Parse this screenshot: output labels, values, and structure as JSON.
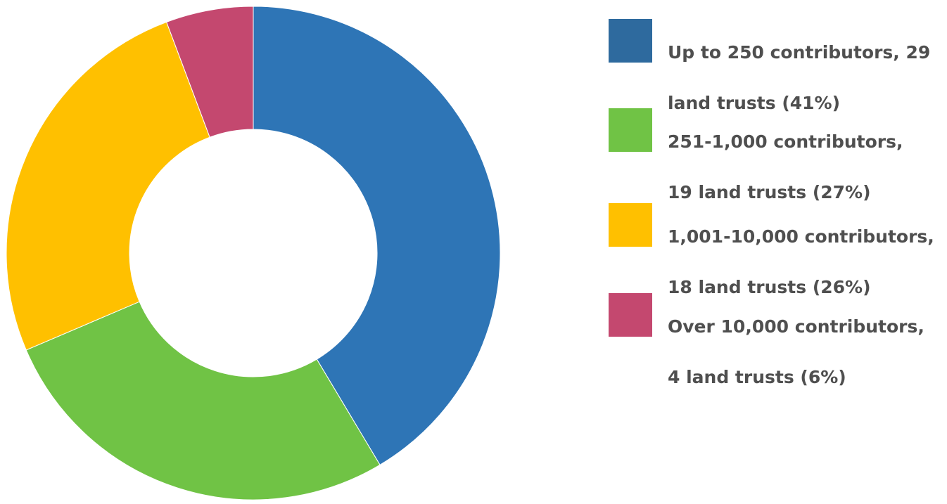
{
  "chart_data": {
    "type": "pie",
    "variant": "donut",
    "legend_position": "right",
    "categories": [
      "Up to 250 contributors, 29 land trusts (41%)",
      "251-1,000 contributors, 19 land trusts (27%)",
      "1,001-10,000 contributors, 18 land trusts (26%)",
      "Over 10,000 contributors, 4 land trusts (6%)"
    ],
    "values": [
      29,
      19,
      18,
      4
    ],
    "percentages": [
      41,
      27,
      26,
      6
    ],
    "colors": [
      "#2E75B6",
      "#70C345",
      "#FFC000",
      "#C4486F"
    ],
    "legend": [
      {
        "line1": "Up to 250 contributors, 29",
        "line2": "land trusts (41%)",
        "color": "#2E6A9E"
      },
      {
        "line1": "251-1,000 contributors,",
        "line2": "19 land trusts (27%)",
        "color": "#70C345"
      },
      {
        "line1": "1,001-10,000 contributors,",
        "line2": "18 land trusts (26%)",
        "color": "#FFC000"
      },
      {
        "line1": "Over 10,000 contributors,",
        "line2": "4 land trusts (6%)",
        "color": "#C4486F"
      }
    ]
  }
}
